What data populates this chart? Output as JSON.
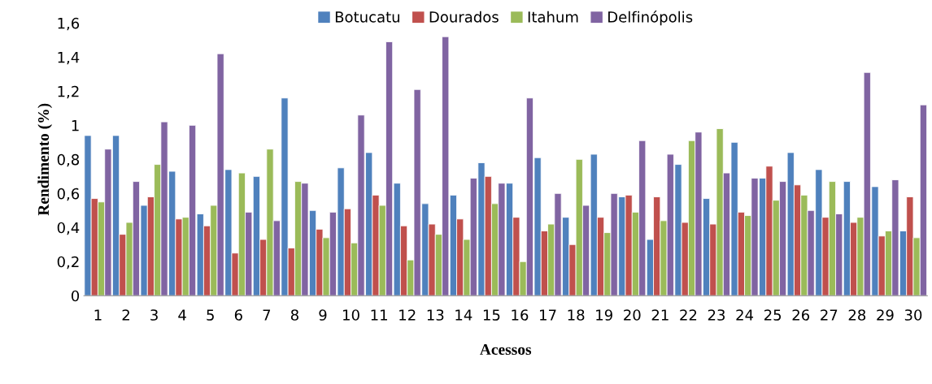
{
  "chart_data": {
    "type": "bar",
    "xlabel": "Acessos",
    "ylabel": "Rendimento (%)",
    "categories": [
      "1",
      "2",
      "3",
      "4",
      "5",
      "6",
      "7",
      "8",
      "9",
      "10",
      "11",
      "12",
      "13",
      "14",
      "15",
      "16",
      "17",
      "18",
      "19",
      "20",
      "21",
      "22",
      "23",
      "24",
      "25",
      "26",
      "27",
      "28",
      "29",
      "30"
    ],
    "series": [
      {
        "name": "Botucatu",
        "color": "#4f81bd",
        "values": [
          0.94,
          0.94,
          0.53,
          0.73,
          0.48,
          0.74,
          0.7,
          1.16,
          0.5,
          0.75,
          0.84,
          0.66,
          0.54,
          0.59,
          0.78,
          0.66,
          0.81,
          0.46,
          0.83,
          0.58,
          0.33,
          0.77,
          0.57,
          0.9,
          0.69,
          0.84,
          0.74,
          0.67,
          0.64,
          0.38
        ]
      },
      {
        "name": "Dourados",
        "color": "#c0504d",
        "values": [
          0.57,
          0.36,
          0.58,
          0.45,
          0.41,
          0.25,
          0.33,
          0.28,
          0.39,
          0.51,
          0.59,
          0.41,
          0.42,
          0.45,
          0.7,
          0.46,
          0.38,
          0.3,
          0.46,
          0.59,
          0.58,
          0.43,
          0.42,
          0.49,
          0.76,
          0.65,
          0.46,
          0.43,
          0.35,
          0.58
        ]
      },
      {
        "name": "Itahum",
        "color": "#9bbb59",
        "values": [
          0.55,
          0.43,
          0.77,
          0.46,
          0.53,
          0.72,
          0.86,
          0.67,
          0.34,
          0.31,
          0.53,
          0.21,
          0.36,
          0.33,
          0.54,
          0.2,
          0.42,
          0.8,
          0.37,
          0.49,
          0.44,
          0.91,
          0.98,
          0.47,
          0.56,
          0.59,
          0.67,
          0.46,
          0.38,
          0.34
        ]
      },
      {
        "name": "Delfinópolis",
        "color": "#8064a2",
        "values": [
          0.86,
          0.67,
          1.02,
          1.0,
          1.42,
          0.49,
          0.44,
          0.66,
          0.49,
          1.06,
          1.49,
          1.21,
          1.52,
          0.69,
          0.66,
          1.16,
          0.6,
          0.53,
          0.6,
          0.91,
          0.83,
          0.96,
          0.72,
          0.69,
          0.67,
          0.5,
          0.48,
          1.31,
          0.68,
          1.12
        ]
      }
    ],
    "ylim": [
      0,
      1.6
    ],
    "yticks": [
      0,
      {
        "value": 0.2,
        "label": "0,2"
      },
      {
        "value": 0.4,
        "label": "0,4"
      },
      {
        "value": 0.6,
        "label": "0,6"
      },
      {
        "value": 0.8,
        "label": "0,8"
      },
      1,
      {
        "value": 1.2,
        "label": "1,2"
      },
      {
        "value": 1.4,
        "label": "1,4"
      },
      {
        "value": 1.6,
        "label": "1,6"
      }
    ],
    "grid": false,
    "legend": "top"
  }
}
